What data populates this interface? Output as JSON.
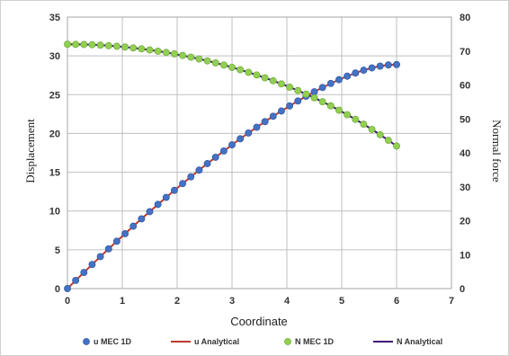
{
  "chart_data": {
    "type": "line",
    "xlabel": "Coordinate",
    "ylabel_left": "Displacement",
    "ylabel_right": "Normal force",
    "xlim": [
      0,
      7
    ],
    "ylim_left": [
      0,
      35
    ],
    "ylim_right": [
      0,
      80
    ],
    "x_ticks": [
      "0",
      "1",
      "2",
      "3",
      "4",
      "5",
      "6",
      "7"
    ],
    "y_left_ticks": [
      "0",
      "5",
      "10",
      "15",
      "20",
      "25",
      "30",
      "35"
    ],
    "y_right_ticks": [
      "0",
      "10",
      "20",
      "30",
      "40",
      "50",
      "60",
      "70",
      "80"
    ],
    "grid": true,
    "legend_position": "bottom",
    "series": [
      {
        "name": "u MEC 1D",
        "axis": "left",
        "marker": "circle",
        "color": "#4472c4",
        "x": [
          0.0,
          0.15,
          0.3,
          0.45,
          0.6,
          0.75,
          0.9,
          1.05,
          1.2,
          1.35,
          1.5,
          1.65,
          1.8,
          1.95,
          2.1,
          2.25,
          2.4,
          2.55,
          2.7,
          2.85,
          3.0,
          3.15,
          3.3,
          3.45,
          3.6,
          3.75,
          3.9,
          4.05,
          4.2,
          4.35,
          4.5,
          4.65,
          4.8,
          4.95,
          5.1,
          5.25,
          5.4,
          5.55,
          5.7,
          5.85,
          6.0
        ],
        "y": [
          0.0,
          1.05,
          2.08,
          3.11,
          4.12,
          5.12,
          6.1,
          7.08,
          8.04,
          8.99,
          9.92,
          10.85,
          11.76,
          12.66,
          13.54,
          14.41,
          15.27,
          16.11,
          16.93,
          17.74,
          18.53,
          19.31,
          20.06,
          20.8,
          21.52,
          22.22,
          22.89,
          23.55,
          24.18,
          24.79,
          25.37,
          25.92,
          26.44,
          26.93,
          27.38,
          27.79,
          28.15,
          28.45,
          28.68,
          28.83,
          28.88
        ]
      },
      {
        "name": "u Analytical",
        "axis": "left",
        "marker": "none",
        "color": "#c0392b",
        "x": [
          0.0,
          0.15,
          0.3,
          0.45,
          0.6,
          0.75,
          0.9,
          1.05,
          1.2,
          1.35,
          1.5,
          1.65,
          1.8,
          1.95,
          2.1,
          2.25,
          2.4,
          2.55,
          2.7,
          2.85,
          3.0,
          3.15,
          3.3,
          3.45,
          3.6,
          3.75,
          3.9,
          4.05,
          4.2,
          4.35,
          4.5,
          4.65,
          4.8,
          4.95,
          5.1,
          5.25,
          5.4,
          5.55,
          5.7,
          5.85,
          6.0
        ],
        "y": [
          0.0,
          1.05,
          2.08,
          3.11,
          4.12,
          5.12,
          6.1,
          7.08,
          8.04,
          8.99,
          9.92,
          10.85,
          11.76,
          12.66,
          13.54,
          14.41,
          15.27,
          16.11,
          16.93,
          17.74,
          18.53,
          19.31,
          20.06,
          20.8,
          21.52,
          22.22,
          22.89,
          23.55,
          24.18,
          24.79,
          25.37,
          25.92,
          26.44,
          26.93,
          27.38,
          27.79,
          28.15,
          28.45,
          28.68,
          28.83,
          28.88
        ]
      },
      {
        "name": "N MEC 1D",
        "axis": "right",
        "marker": "circle",
        "color": "#92d050",
        "x": [
          0.0,
          0.15,
          0.3,
          0.45,
          0.6,
          0.75,
          0.9,
          1.05,
          1.2,
          1.35,
          1.5,
          1.65,
          1.8,
          1.95,
          2.1,
          2.25,
          2.4,
          2.55,
          2.7,
          2.85,
          3.0,
          3.15,
          3.3,
          3.45,
          3.6,
          3.75,
          3.9,
          4.05,
          4.2,
          4.35,
          4.5,
          4.65,
          4.8,
          4.95,
          5.1,
          5.25,
          5.4,
          5.55,
          5.7,
          5.85,
          6.0
        ],
        "y": [
          72.0,
          71.98,
          71.93,
          71.85,
          71.73,
          71.58,
          71.39,
          71.17,
          70.92,
          70.64,
          70.31,
          69.96,
          69.57,
          69.15,
          68.69,
          68.2,
          67.67,
          67.11,
          66.5,
          65.87,
          65.19,
          64.48,
          63.73,
          62.94,
          62.1,
          61.23,
          60.31,
          59.35,
          58.35,
          57.3,
          56.2,
          55.04,
          53.84,
          52.57,
          51.25,
          49.87,
          48.42,
          46.91,
          45.33,
          43.68,
          42.0
        ]
      },
      {
        "name": "N Analytical",
        "axis": "right",
        "marker": "none",
        "color": "#3c1a78",
        "x": [
          0.0,
          0.15,
          0.3,
          0.45,
          0.6,
          0.75,
          0.9,
          1.05,
          1.2,
          1.35,
          1.5,
          1.65,
          1.8,
          1.95,
          2.1,
          2.25,
          2.4,
          2.55,
          2.7,
          2.85,
          3.0,
          3.15,
          3.3,
          3.45,
          3.6,
          3.75,
          3.9,
          4.05,
          4.2,
          4.35,
          4.5,
          4.65,
          4.8,
          4.95,
          5.1,
          5.25,
          5.4,
          5.55,
          5.7,
          5.85,
          6.0
        ],
        "y": [
          72.0,
          71.98,
          71.93,
          71.85,
          71.73,
          71.58,
          71.39,
          71.17,
          70.92,
          70.64,
          70.31,
          69.96,
          69.57,
          69.15,
          68.69,
          68.2,
          67.67,
          67.11,
          66.5,
          65.87,
          65.19,
          64.48,
          63.73,
          62.94,
          62.1,
          61.23,
          60.31,
          59.35,
          58.35,
          57.3,
          56.2,
          55.04,
          53.84,
          52.57,
          51.25,
          49.87,
          48.42,
          46.91,
          45.33,
          43.68,
          42.0
        ]
      }
    ]
  }
}
